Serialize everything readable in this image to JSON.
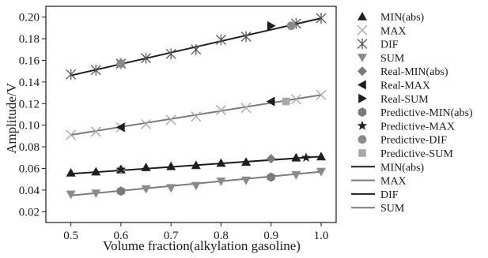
{
  "chart_data": {
    "type": "scatter",
    "xlabel": "Volume fraction(alkylation gasoline)",
    "ylabel": "Amplitude/V",
    "xlim": [
      0.45,
      1.03
    ],
    "ylim": [
      0.01,
      0.21
    ],
    "xticks": [
      0.5,
      0.6,
      0.7,
      0.8,
      0.9,
      1.0
    ],
    "xtick_labels": [
      "0.5",
      "0.6",
      "0.7",
      "0.8",
      "0.9",
      "1.0"
    ],
    "yticks": [
      0.02,
      0.04,
      0.06,
      0.08,
      0.1,
      0.12,
      0.14,
      0.16,
      0.18,
      0.2
    ],
    "ytick_labels": [
      "0.02",
      "0.04",
      "0.06",
      "0.08",
      "0.10",
      "0.12",
      "0.14",
      "0.16",
      "0.18",
      "0.20"
    ],
    "grid": false,
    "legend_position": "right",
    "colors": {
      "dark": "#1e1e1e",
      "mid": "#7a7a7a",
      "light": "#a8a8a8"
    },
    "series": [
      {
        "name": "MIN(abs)",
        "kind": "marker",
        "marker": "triangle-up",
        "color": "#1e1e1e",
        "x": [
          0.5,
          0.55,
          0.6,
          0.65,
          0.7,
          0.75,
          0.8,
          0.85,
          0.95,
          1.0
        ],
        "y": [
          0.056,
          0.057,
          0.059,
          0.061,
          0.062,
          0.063,
          0.065,
          0.066,
          0.07,
          0.071
        ]
      },
      {
        "name": "MAX",
        "kind": "marker",
        "marker": "x",
        "color": "#a8a8a8",
        "x": [
          0.5,
          0.55,
          0.6,
          0.65,
          0.7,
          0.75,
          0.8,
          0.85,
          0.95,
          1.0
        ],
        "y": [
          0.091,
          0.094,
          0.098,
          0.101,
          0.105,
          0.108,
          0.114,
          0.116,
          0.124,
          0.128
        ]
      },
      {
        "name": "DIF",
        "kind": "marker",
        "marker": "asterisk",
        "color": "#555555",
        "x": [
          0.5,
          0.55,
          0.6,
          0.65,
          0.7,
          0.75,
          0.8,
          0.85,
          0.95,
          1.0
        ],
        "y": [
          0.147,
          0.151,
          0.157,
          0.162,
          0.166,
          0.17,
          0.179,
          0.182,
          0.194,
          0.199
        ]
      },
      {
        "name": "SUM",
        "kind": "marker",
        "marker": "triangle-down",
        "color": "#8a8a8a",
        "x": [
          0.5,
          0.55,
          0.65,
          0.7,
          0.75,
          0.8,
          0.85,
          0.95,
          1.0
        ],
        "y": [
          0.036,
          0.037,
          0.041,
          0.042,
          0.044,
          0.048,
          0.049,
          0.054,
          0.057
        ]
      },
      {
        "name": "Real-MIN(abs)",
        "kind": "marker",
        "marker": "diamond",
        "color": "#7a7a7a",
        "x": [
          0.6,
          0.9
        ],
        "y": [
          0.059,
          0.069
        ]
      },
      {
        "name": "Real-MAX",
        "kind": "marker",
        "marker": "triangle-left",
        "color": "#1e1e1e",
        "x": [
          0.6,
          0.9
        ],
        "y": [
          0.098,
          0.122
        ]
      },
      {
        "name": "Real-SUM",
        "kind": "marker",
        "marker": "triangle-right",
        "color": "#1e1e1e",
        "x": [
          0.9
        ],
        "y": [
          0.192
        ]
      },
      {
        "name": "Predictive-MIN(abs)",
        "kind": "marker",
        "marker": "hexagon",
        "color": "#7a7a7a",
        "x": [
          0.6,
          0.9
        ],
        "y": [
          0.039,
          0.052
        ]
      },
      {
        "name": "Predictive-MAX",
        "kind": "marker",
        "marker": "star",
        "color": "#1e1e1e",
        "x": [
          0.6,
          0.97
        ],
        "y": [
          0.059,
          0.07
        ]
      },
      {
        "name": "Predictive-DIF",
        "kind": "marker",
        "marker": "circle",
        "color": "#8a8a8a",
        "x": [
          0.6,
          0.94
        ],
        "y": [
          0.157,
          0.192
        ]
      },
      {
        "name": "Predictive-SUM",
        "kind": "marker",
        "marker": "square",
        "color": "#a8a8a8",
        "x": [
          0.93
        ],
        "y": [
          0.122
        ]
      },
      {
        "name": "MIN(abs)",
        "kind": "line",
        "color": "#1e1e1e",
        "x": [
          0.5,
          1.0
        ],
        "y": [
          0.055,
          0.071
        ]
      },
      {
        "name": "MAX",
        "kind": "line",
        "color": "#7a7a7a",
        "x": [
          0.5,
          1.0
        ],
        "y": [
          0.091,
          0.128
        ]
      },
      {
        "name": "DIF",
        "kind": "line",
        "color": "#1e1e1e",
        "x": [
          0.5,
          1.0
        ],
        "y": [
          0.146,
          0.199
        ]
      },
      {
        "name": "SUM",
        "kind": "line",
        "color": "#7a7a7a",
        "x": [
          0.5,
          1.0
        ],
        "y": [
          0.035,
          0.057
        ]
      }
    ]
  }
}
